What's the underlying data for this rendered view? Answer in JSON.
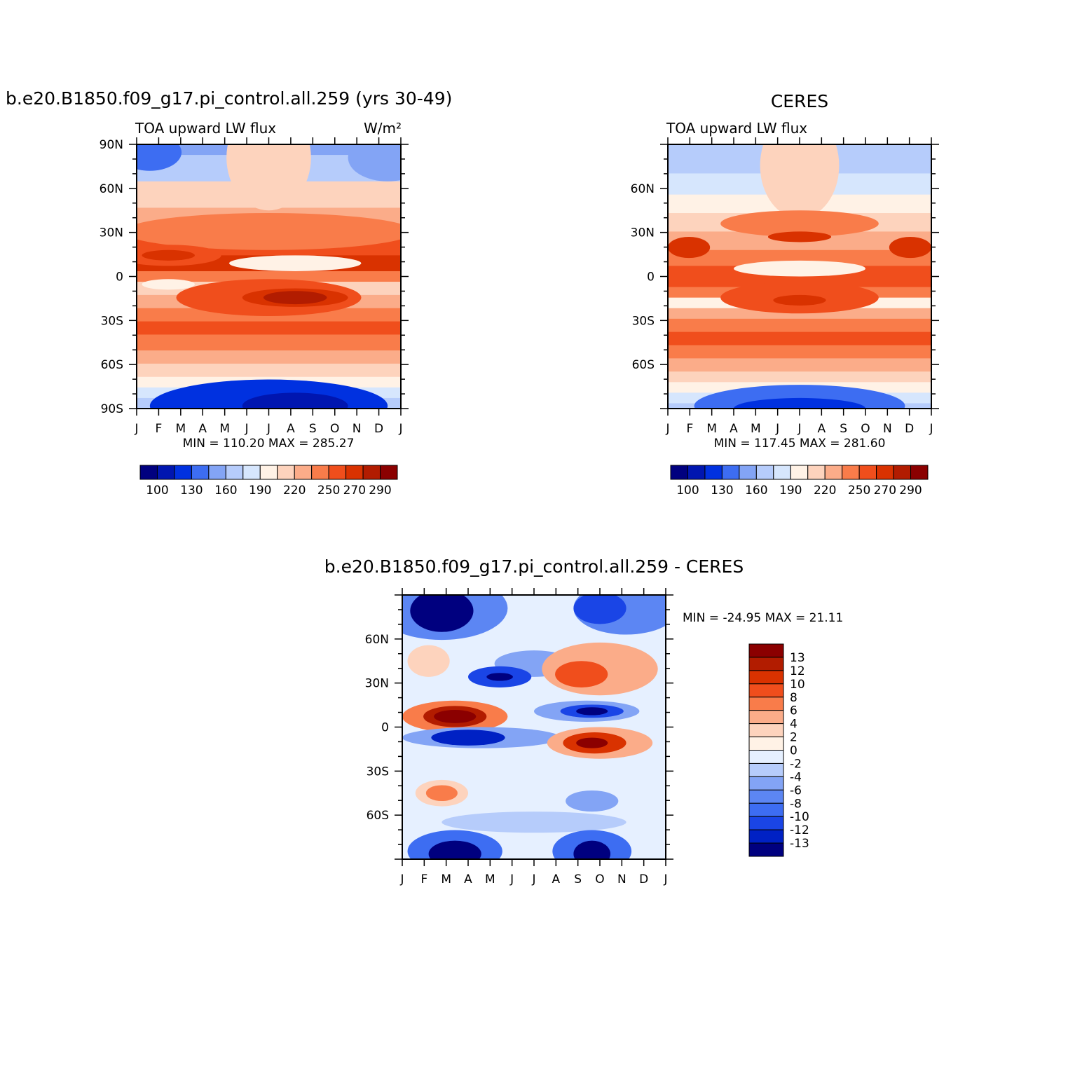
{
  "chart_data": [
    {
      "type": "heatmap",
      "title": "b.e20.B1850.f09_g17.pi_control.all.259 (yrs 30-49)",
      "subtitle": "TOA upward LW flux",
      "units": "W/m²",
      "stats": "MIN =  110.20  MAX =  285.27",
      "x_ticks": [
        "J",
        "F",
        "M",
        "A",
        "M",
        "J",
        "J",
        "A",
        "S",
        "O",
        "N",
        "D",
        "J"
      ],
      "y_ticks": [
        "90N",
        "60N",
        "30N",
        "0",
        "30S",
        "60S",
        "90S"
      ],
      "colorbar_labels": [
        "100",
        "130",
        "160",
        "190",
        "220",
        "250",
        "270",
        "290"
      ],
      "min": 110.2,
      "max": 285.27
    },
    {
      "type": "heatmap",
      "title": "CERES",
      "subtitle": "TOA upward LW flux",
      "stats": "MIN =  117.45  MAX =  281.60",
      "x_ticks": [
        "J",
        "F",
        "M",
        "A",
        "M",
        "J",
        "J",
        "A",
        "S",
        "O",
        "N",
        "D",
        "J"
      ],
      "y_ticks": [
        "60N",
        "30N",
        "0",
        "30S",
        "60S"
      ],
      "colorbar_labels": [
        "100",
        "130",
        "160",
        "190",
        "220",
        "250",
        "270",
        "290"
      ],
      "min": 117.45,
      "max": 281.6
    },
    {
      "type": "heatmap",
      "title": "b.e20.B1850.f09_g17.pi_control.all.259 - CERES",
      "stats": "MIN = -24.95  MAX =   21.11",
      "x_ticks": [
        "J",
        "F",
        "M",
        "A",
        "M",
        "J",
        "J",
        "A",
        "S",
        "O",
        "N",
        "D",
        "J"
      ],
      "y_ticks": [
        "60N",
        "30N",
        "0",
        "30S",
        "60S"
      ],
      "colorbar_labels": [
        "13",
        "12",
        "10",
        "8",
        "6",
        "4",
        "2",
        "0",
        "-2",
        "-4",
        "-6",
        "-8",
        "-10",
        "-12",
        "-13"
      ],
      "min": -24.95,
      "max": 21.11
    }
  ],
  "colors": {
    "flux_scale": [
      "#00007f",
      "#0016b0",
      "#0031e0",
      "#3d6df2",
      "#83a4f5",
      "#b6ccfb",
      "#d6e6fd",
      "#fff2e6",
      "#fdd3bd",
      "#fbac89",
      "#f97c4a",
      "#f04e1c",
      "#d93200",
      "#b21c00",
      "#8b0000"
    ],
    "diff_scale": [
      "#8b0000",
      "#b21c00",
      "#d93200",
      "#f04e1c",
      "#f97c4a",
      "#fbac89",
      "#fdd3bd",
      "#fff2e6",
      "#e6f0ff",
      "#b6ccfb",
      "#83a4f5",
      "#5c86f3",
      "#3d6df2",
      "#1a45e6",
      "#0021c4",
      "#00007f"
    ]
  }
}
